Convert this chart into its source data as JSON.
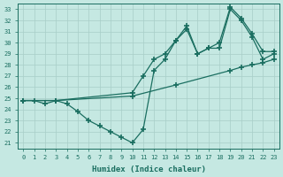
{
  "xlabel": "Humidex (Indice chaleur)",
  "xlim": [
    -0.5,
    23.5
  ],
  "ylim": [
    20.5,
    33.5
  ],
  "yticks": [
    21,
    22,
    23,
    24,
    25,
    26,
    27,
    28,
    29,
    30,
    31,
    32,
    33
  ],
  "xticks": [
    0,
    1,
    2,
    3,
    4,
    5,
    6,
    7,
    8,
    9,
    10,
    11,
    12,
    13,
    14,
    15,
    16,
    17,
    18,
    19,
    20,
    21,
    22,
    23
  ],
  "bg_color": "#c5e8e2",
  "grid_color": "#a8cec8",
  "line_color": "#1a6e60",
  "line1_x": [
    0,
    1,
    2,
    3,
    4,
    5,
    6,
    7,
    8,
    9,
    10,
    11,
    12,
    13,
    14,
    15,
    16,
    17,
    18,
    19,
    20,
    21,
    22,
    23
  ],
  "line1_y": [
    24.8,
    24.8,
    24.5,
    24.8,
    24.5,
    23.8,
    23.0,
    22.5,
    22.0,
    21.5,
    21.0,
    22.2,
    27.5,
    28.5,
    30.2,
    31.2,
    29.0,
    29.5,
    29.5,
    33.0,
    32.0,
    30.5,
    28.5,
    29.0
  ],
  "line2_x": [
    0,
    3,
    10,
    11,
    12,
    13,
    14,
    15,
    16,
    17,
    18,
    19,
    20,
    21,
    22,
    23
  ],
  "line2_y": [
    24.8,
    24.8,
    25.5,
    27.0,
    28.5,
    29.0,
    30.2,
    31.5,
    29.0,
    29.5,
    30.0,
    33.2,
    32.2,
    30.8,
    29.2,
    29.2
  ],
  "line3_x": [
    0,
    3,
    10,
    14,
    19,
    20,
    21,
    22,
    23
  ],
  "line3_y": [
    24.8,
    24.8,
    25.2,
    26.2,
    27.5,
    27.8,
    28.0,
    28.2,
    28.5
  ]
}
